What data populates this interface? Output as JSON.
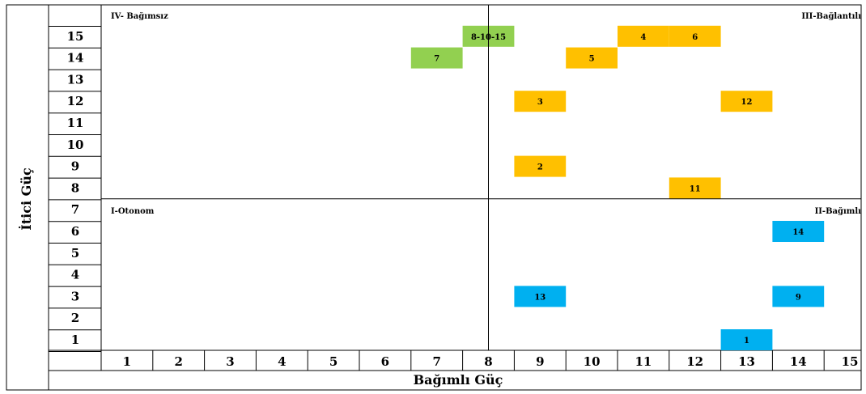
{
  "chart_data": {
    "type": "scatter",
    "ylabel": "İtici Güç",
    "xlabel": "Bağımlı Güç",
    "x_ticks": [
      "1",
      "2",
      "3",
      "4",
      "5",
      "6",
      "7",
      "8",
      "9",
      "10",
      "11",
      "12",
      "13",
      "14",
      "15"
    ],
    "y_ticks": [
      "1",
      "2",
      "3",
      "4",
      "5",
      "6",
      "7",
      "8",
      "9",
      "10",
      "11",
      "12",
      "13",
      "14",
      "15"
    ],
    "xlim": [
      1,
      15
    ],
    "ylim": [
      1,
      15
    ],
    "divider": {
      "x": 8,
      "y": 7.5
    },
    "quadrants": {
      "top_left": "IV- Bağımsız",
      "top_right": "III-Bağlantılı",
      "bottom_left": "I-Otonom",
      "bottom_right": "II-Bağımlı"
    },
    "points": [
      {
        "label": "8-10-15",
        "x": 8,
        "y": 15,
        "color": "#92d050"
      },
      {
        "label": "7",
        "x": 7,
        "y": 14,
        "color": "#92d050"
      },
      {
        "label": "4",
        "x": 11,
        "y": 15,
        "color": "#ffc000"
      },
      {
        "label": "6",
        "x": 12,
        "y": 15,
        "color": "#ffc000"
      },
      {
        "label": "5",
        "x": 10,
        "y": 14,
        "color": "#ffc000"
      },
      {
        "label": "3",
        "x": 9,
        "y": 12,
        "color": "#ffc000"
      },
      {
        "label": "12",
        "x": 13,
        "y": 12,
        "color": "#ffc000"
      },
      {
        "label": "2",
        "x": 9,
        "y": 9,
        "color": "#ffc000"
      },
      {
        "label": "11",
        "x": 12,
        "y": 8,
        "color": "#ffc000"
      },
      {
        "label": "14",
        "x": 14,
        "y": 6,
        "color": "#00b0f0"
      },
      {
        "label": "13",
        "x": 9,
        "y": 3,
        "color": "#00b0f0"
      },
      {
        "label": "9",
        "x": 14,
        "y": 3,
        "color": "#00b0f0"
      },
      {
        "label": "1",
        "x": 13,
        "y": 1,
        "color": "#00b0f0"
      }
    ]
  }
}
